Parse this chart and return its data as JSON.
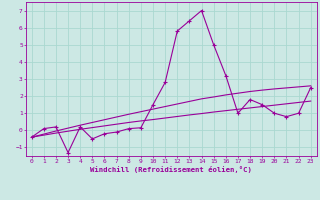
{
  "xlabel": "Windchill (Refroidissement éolien,°C)",
  "background_color": "#cce8e4",
  "grid_color": "#aad8d0",
  "line_color": "#990099",
  "x": [
    0,
    1,
    2,
    3,
    4,
    5,
    6,
    7,
    8,
    9,
    10,
    11,
    12,
    13,
    14,
    15,
    16,
    17,
    18,
    19,
    20,
    21,
    22,
    23
  ],
  "y_main": [
    -0.4,
    0.1,
    0.2,
    -1.3,
    0.2,
    -0.5,
    -0.2,
    -0.1,
    0.1,
    0.15,
    1.5,
    2.8,
    5.8,
    6.4,
    7.0,
    5.0,
    3.2,
    1.0,
    1.8,
    1.5,
    1.0,
    0.8,
    1.0,
    2.5
  ],
  "y_upper": [
    -0.4,
    -0.22,
    -0.04,
    0.13,
    0.3,
    0.46,
    0.62,
    0.78,
    0.94,
    1.09,
    1.24,
    1.39,
    1.54,
    1.69,
    1.84,
    1.95,
    2.07,
    2.17,
    2.27,
    2.35,
    2.42,
    2.48,
    2.54,
    2.6
  ],
  "y_lower": [
    -0.4,
    -0.28,
    -0.16,
    -0.05,
    0.06,
    0.16,
    0.26,
    0.36,
    0.46,
    0.55,
    0.63,
    0.72,
    0.81,
    0.9,
    0.98,
    1.07,
    1.15,
    1.23,
    1.31,
    1.39,
    1.47,
    1.55,
    1.63,
    1.71
  ],
  "xlim": [
    -0.5,
    23.5
  ],
  "ylim": [
    -1.5,
    7.5
  ],
  "yticks": [
    -1,
    0,
    1,
    2,
    3,
    4,
    5,
    6,
    7
  ],
  "xticks": [
    0,
    1,
    2,
    3,
    4,
    5,
    6,
    7,
    8,
    9,
    10,
    11,
    12,
    13,
    14,
    15,
    16,
    17,
    18,
    19,
    20,
    21,
    22,
    23
  ]
}
